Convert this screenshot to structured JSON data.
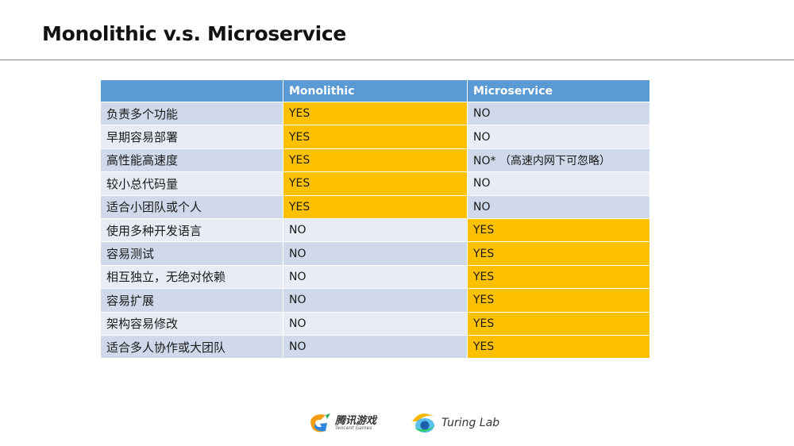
{
  "slide": {
    "title": "Monolithic v.s. Microservice"
  },
  "table": {
    "headers": [
      "",
      "Monolithic",
      "Microservice"
    ],
    "rows": [
      {
        "feature": "负责多个功能",
        "monolithic": "YES",
        "microservice": "NO"
      },
      {
        "feature": "早期容易部署",
        "monolithic": "YES",
        "microservice": "NO"
      },
      {
        "feature": "高性能高速度",
        "monolithic": "YES",
        "microservice": "NO*  （高速内网下可忽略）"
      },
      {
        "feature": "较小总代码量",
        "monolithic": "YES",
        "microservice": "NO"
      },
      {
        "feature": "适合小团队或个人",
        "monolithic": "YES",
        "microservice": "NO"
      },
      {
        "feature": "使用多种开发语言",
        "monolithic": "NO",
        "microservice": "YES"
      },
      {
        "feature": "容易测试",
        "monolithic": "NO",
        "microservice": "YES"
      },
      {
        "feature": "相互独立，无绝对依赖",
        "monolithic": "NO",
        "microservice": "YES"
      },
      {
        "feature": "容易扩展",
        "monolithic": "NO",
        "microservice": "YES"
      },
      {
        "feature": "架构容易修改",
        "monolithic": "NO",
        "microservice": "YES"
      },
      {
        "feature": "适合多人协作或大团队",
        "monolithic": "NO",
        "microservice": "YES"
      }
    ]
  },
  "colors": {
    "header": "#5b9bd5",
    "highlight": "#ffc000",
    "row_odd": "#cfd9ea",
    "row_even": "#e8edf5"
  },
  "footer": {
    "logo1": {
      "cn": "腾讯游戏",
      "en": "Tencent Games"
    },
    "logo2": {
      "text": "Turing Lab"
    }
  }
}
